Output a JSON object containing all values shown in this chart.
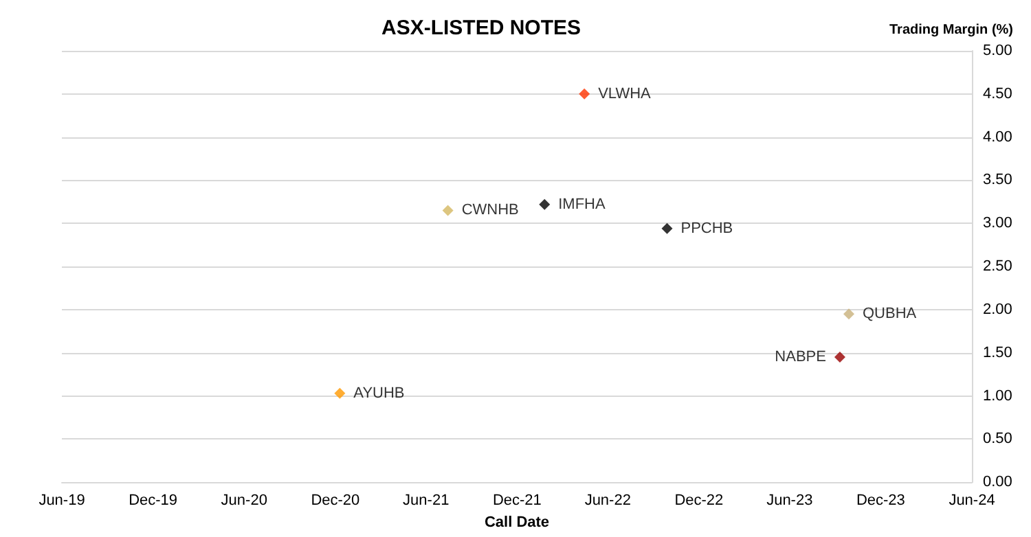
{
  "chart_data": {
    "type": "scatter",
    "title": "ASX-LISTED NOTES",
    "xlabel": "Call Date",
    "ylabel": "Trading Margin (%)",
    "xlim": [
      "2019-06-01",
      "2024-06-01"
    ],
    "xticks": [
      {
        "value": "2019-06-01",
        "label": "Jun-19"
      },
      {
        "value": "2019-12-01",
        "label": "Dec-19"
      },
      {
        "value": "2020-06-01",
        "label": "Jun-20"
      },
      {
        "value": "2020-12-01",
        "label": "Dec-20"
      },
      {
        "value": "2021-06-01",
        "label": "Jun-21"
      },
      {
        "value": "2021-12-01",
        "label": "Dec-21"
      },
      {
        "value": "2022-06-01",
        "label": "Jun-22"
      },
      {
        "value": "2022-12-01",
        "label": "Dec-22"
      },
      {
        "value": "2023-06-01",
        "label": "Jun-23"
      },
      {
        "value": "2023-12-01",
        "label": "Dec-23"
      },
      {
        "value": "2024-06-01",
        "label": "Jun-24"
      }
    ],
    "ylim": [
      0,
      5
    ],
    "yticks": [
      {
        "value": 0,
        "label": "0.00"
      },
      {
        "value": 0.5,
        "label": "0.50"
      },
      {
        "value": 1,
        "label": "1.00"
      },
      {
        "value": 1.5,
        "label": "1.50"
      },
      {
        "value": 2,
        "label": "2.00"
      },
      {
        "value": 2.5,
        "label": "2.50"
      },
      {
        "value": 3,
        "label": "3.00"
      },
      {
        "value": 3.5,
        "label": "3.50"
      },
      {
        "value": 4,
        "label": "4.00"
      },
      {
        "value": 4.5,
        "label": "4.50"
      },
      {
        "value": 5,
        "label": "5.00"
      }
    ],
    "grid": "y",
    "legend": false,
    "marker": "diamond",
    "series": [
      {
        "name": "VLWHA",
        "color": "#ff3300",
        "x": [
          "2022-04-15"
        ],
        "values": [
          4.5
        ]
      },
      {
        "name": "CWNHB",
        "color": "#d4b860",
        "x": [
          "2021-07-15"
        ],
        "values": [
          3.15
        ]
      },
      {
        "name": "IMFHA",
        "color": "#000000",
        "x": [
          "2022-01-25"
        ],
        "values": [
          3.22
        ]
      },
      {
        "name": "PPCHB",
        "color": "#000000",
        "x": [
          "2022-09-28"
        ],
        "values": [
          2.94
        ]
      },
      {
        "name": "QUBHA",
        "color": "#c8b07a",
        "x": [
          "2023-09-28"
        ],
        "values": [
          1.95
        ]
      },
      {
        "name": "NABPE",
        "color": "#990000",
        "x": [
          "2023-09-10"
        ],
        "values": [
          1.45
        ]
      },
      {
        "name": "AYUHB",
        "color": "#ff9900",
        "x": [
          "2020-12-10"
        ],
        "values": [
          1.03
        ]
      }
    ]
  }
}
